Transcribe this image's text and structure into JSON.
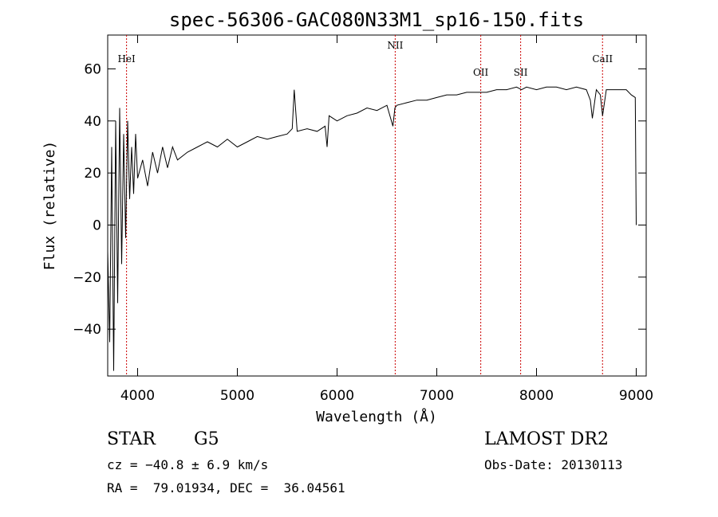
{
  "chart_data": {
    "type": "line",
    "title": "spec-56306-GAC080N33M1_sp16-150.fits",
    "xlabel": "Wavelength (Å)",
    "ylabel": "Flux (relative)",
    "xlim": [
      3700,
      9100
    ],
    "ylim": [
      -58,
      73
    ],
    "x_ticks": [
      4000,
      5000,
      6000,
      7000,
      8000,
      9000
    ],
    "y_ticks": [
      -40,
      -20,
      0,
      20,
      40,
      60
    ],
    "x_tick_labels": [
      "4000",
      "5000",
      "6000",
      "7000",
      "8000",
      "9000"
    ],
    "y_tick_labels": [
      "−40",
      "−20",
      "0",
      "20",
      "40",
      "60"
    ],
    "line_marks": [
      {
        "label": "HeI",
        "x": 3889
      },
      {
        "label": "NII",
        "x": 6583
      },
      {
        "label": "OII",
        "x": 7441
      },
      {
        "label": "SII",
        "x": 7841
      },
      {
        "label": "CaII",
        "x": 8662
      }
    ],
    "series": [
      {
        "values_x": [
          3700,
          3720,
          3740,
          3760,
          3780,
          3800,
          3820,
          3840,
          3860,
          3880,
          3900,
          3920,
          3940,
          3960,
          3980,
          4000,
          4050,
          4100,
          4150,
          4200,
          4250,
          4300,
          4350,
          4400,
          4500,
          4600,
          4700,
          4800,
          4900,
          5000,
          5100,
          5200,
          5300,
          5400,
          5500,
          5550,
          5570,
          5600,
          5700,
          5800,
          5880,
          5900,
          5920,
          6000,
          6100,
          6200,
          6300,
          6400,
          6500,
          6560,
          6580,
          6600,
          6700,
          6800,
          6900,
          7000,
          7100,
          7200,
          7300,
          7400,
          7500,
          7600,
          7700,
          7800,
          7850,
          7900,
          8000,
          8100,
          8200,
          8300,
          8400,
          8500,
          8540,
          8560,
          8600,
          8640,
          8662,
          8700,
          8800,
          8900,
          8950,
          8990,
          9000
        ],
        "values_y": [
          -10,
          -45,
          30,
          -56,
          40,
          -30,
          45,
          -15,
          35,
          -5,
          40,
          10,
          30,
          12,
          35,
          18,
          25,
          15,
          28,
          20,
          30,
          22,
          30,
          25,
          28,
          30,
          32,
          30,
          33,
          30,
          32,
          34,
          33,
          34,
          35,
          37,
          52,
          36,
          37,
          36,
          38,
          30,
          42,
          40,
          42,
          43,
          45,
          44,
          46,
          38,
          45,
          46,
          47,
          48,
          48,
          49,
          50,
          50,
          51,
          51,
          51,
          52,
          52,
          53,
          52,
          53,
          52,
          53,
          53,
          52,
          53,
          52,
          48,
          41,
          52,
          50,
          42,
          52,
          52,
          52,
          50,
          49,
          0
        ]
      }
    ]
  },
  "info": {
    "class_label": "STAR",
    "subclass_label": "G5",
    "cz_text": "cz = −40.8 ± 6.9 km/s",
    "coords_text": "RA =  79.01934, DEC =  36.04561",
    "survey_label": "LAMOST DR2",
    "obs_date_text": "Obs-Date: 20130113"
  }
}
